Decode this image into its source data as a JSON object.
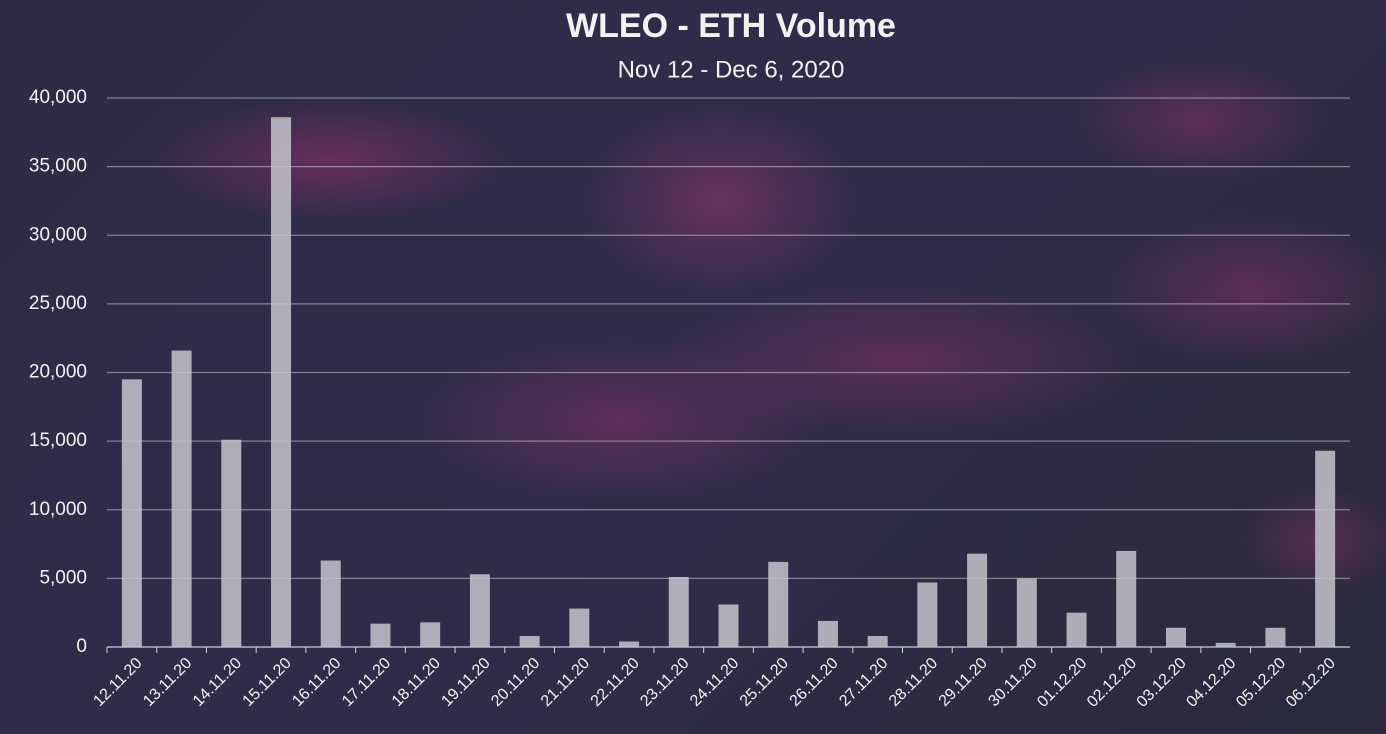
{
  "chart_data": {
    "type": "bar",
    "title": "WLEO - ETH Volume",
    "subtitle": "Nov 12 - Dec 6, 2020",
    "categories": [
      "12.11.20",
      "13.11.20",
      "14.11.20",
      "15.11.20",
      "16.11.20",
      "17.11.20",
      "18.11.20",
      "19.11.20",
      "20.11.20",
      "21.11.20",
      "22.11.20",
      "23.11.20",
      "24.11.20",
      "25.11.20",
      "26.11.20",
      "27.11.20",
      "28.11.20",
      "29.11.20",
      "30.11.20",
      "01.12.20",
      "02.12.20",
      "03.12.20",
      "04.12.20",
      "05.12.20",
      "06.12.20"
    ],
    "values": [
      19500,
      21600,
      15100,
      38600,
      6300,
      1700,
      1800,
      5300,
      800,
      2800,
      400,
      5100,
      3100,
      6200,
      1900,
      800,
      4700,
      6800,
      5000,
      2500,
      7000,
      1400,
      300,
      1400,
      14300
    ],
    "color": "#c4c4cc",
    "ylim": [
      0,
      40000
    ],
    "yticks": [
      0,
      {
        "value": 5000,
        "label": "5,000"
      },
      {
        "value": 10000,
        "label": "10,000"
      },
      {
        "value": 15000,
        "label": "15,000"
      },
      {
        "value": 20000,
        "label": "20,000"
      },
      {
        "value": 25000,
        "label": "25,000"
      },
      {
        "value": 30000,
        "label": "30,000"
      },
      {
        "value": 35000,
        "label": "35,000"
      },
      {
        "value": 40000,
        "label": "40,000"
      }
    ],
    "grid": true
  }
}
